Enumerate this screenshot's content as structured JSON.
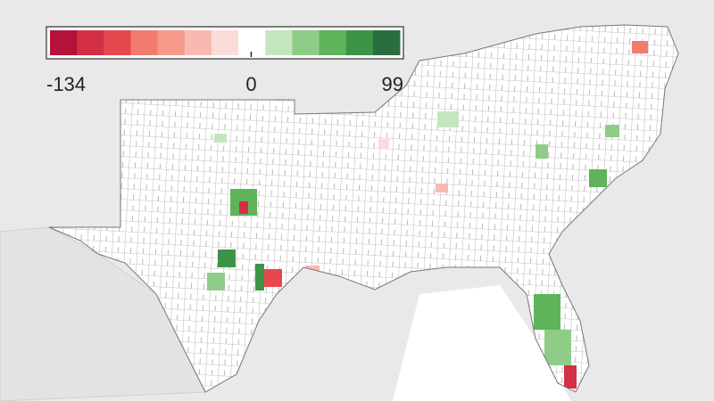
{
  "legend": {
    "min": -134,
    "mid": 0,
    "max": 99,
    "colors": [
      "#b5123b",
      "#d32f45",
      "#e5484f",
      "#f17b6e",
      "#f59a8a",
      "#f8b9b1",
      "#fbdcd9",
      "#ffffff",
      "#c4e6bf",
      "#8fcc87",
      "#5fb35b",
      "#3d9448",
      "#2a6e3f"
    ]
  }
}
